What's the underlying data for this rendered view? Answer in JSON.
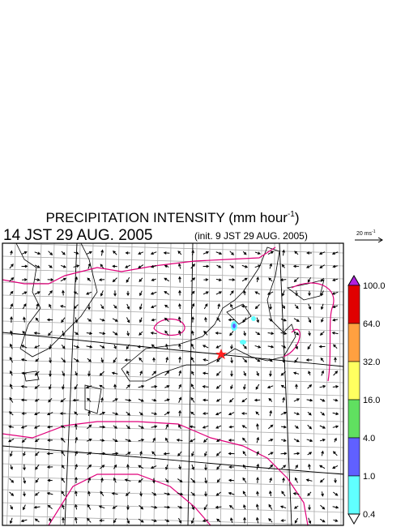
{
  "title": {
    "text": "PRECIPITATION INTENSITY (mm hour",
    "exponent": "-1",
    "close": ")"
  },
  "valid_time": "14 JST 29 AUG. 2005",
  "init_time": "(init. 9 JST 29 AUG. 2005)",
  "wind_scale": {
    "label": "20 ms",
    "exponent": "-1"
  },
  "colorbar": {
    "labels": [
      "100.0",
      "64.0",
      "32.0",
      "16.0",
      "4.0",
      "1.0",
      "0.4"
    ],
    "colors": [
      "#b020e0",
      "#e00000",
      "#ffa040",
      "#ffff60",
      "#60e060",
      "#6060ff",
      "#60ffff",
      "#ffffff"
    ]
  }
}
